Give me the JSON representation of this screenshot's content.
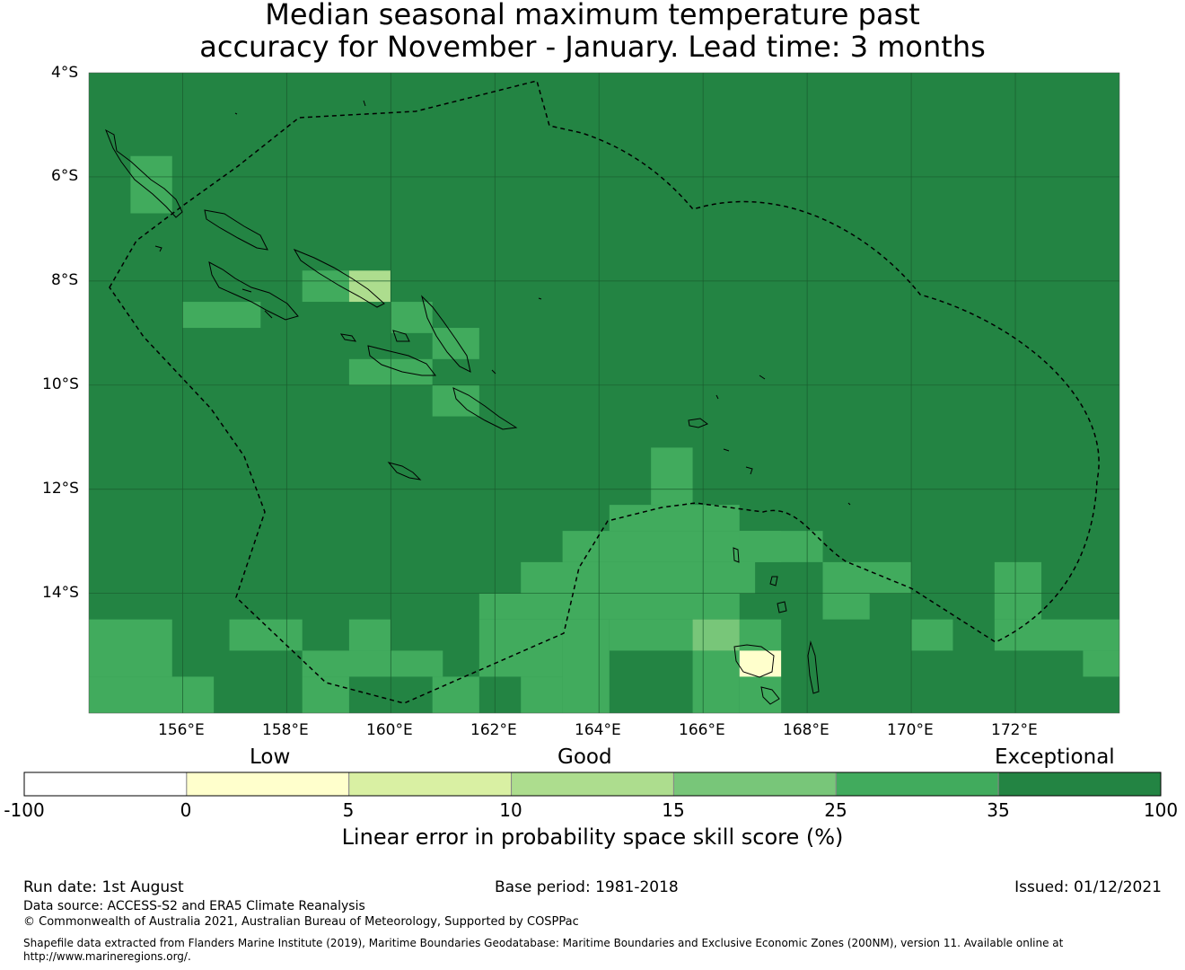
{
  "title": {
    "line1": "Median seasonal maximum temperature past",
    "line2": "accuracy for November - January. Lead time: 3 months"
  },
  "map": {
    "lon_range": [
      154.2,
      174.0
    ],
    "lat_range": [
      -4,
      -16.3
    ],
    "grid_x_labels": [
      "156°E",
      "158°E",
      "160°E",
      "162°E",
      "164°E",
      "166°E",
      "168°E",
      "170°E",
      "172°E"
    ],
    "grid_y_labels": [
      "4°S",
      "6°S",
      "8°S",
      "10°S",
      "12°S",
      "14°S"
    ],
    "background_category": "35-100",
    "anomaly_cells": [
      {
        "lon": [
          155.0,
          155.8
        ],
        "lat": [
          -5.6,
          -6.7
        ],
        "range": "25-35"
      },
      {
        "lon": [
          158.3,
          159.2
        ],
        "lat": [
          -7.8,
          -8.4
        ],
        "range": "25-35"
      },
      {
        "lon": [
          159.2,
          160.0
        ],
        "lat": [
          -7.8,
          -8.4
        ],
        "range": "10-15"
      },
      {
        "lon": [
          156.0,
          157.5
        ],
        "lat": [
          -8.4,
          -8.9
        ],
        "range": "25-35"
      },
      {
        "lon": [
          160.0,
          160.8
        ],
        "lat": [
          -8.4,
          -9.0
        ],
        "range": "25-35"
      },
      {
        "lon": [
          160.8,
          161.7
        ],
        "lat": [
          -8.9,
          -9.5
        ],
        "range": "25-35"
      },
      {
        "lon": [
          159.2,
          160.8
        ],
        "lat": [
          -9.5,
          -10.0
        ],
        "range": "25-35"
      },
      {
        "lon": [
          160.8,
          161.7
        ],
        "lat": [
          -10.0,
          -10.6
        ],
        "range": "25-35"
      },
      {
        "lon": [
          165.0,
          165.8
        ],
        "lat": [
          -11.2,
          -12.3
        ],
        "range": "25-35"
      },
      {
        "lon": [
          164.2,
          166.7
        ],
        "lat": [
          -12.3,
          -12.8
        ],
        "range": "25-35"
      },
      {
        "lon": [
          163.3,
          167.5
        ],
        "lat": [
          -12.8,
          -13.4
        ],
        "range": "25-35"
      },
      {
        "lon": [
          166.7,
          168.3
        ],
        "lat": [
          -12.8,
          -13.4
        ],
        "range": "25-35"
      },
      {
        "lon": [
          162.5,
          167.0
        ],
        "lat": [
          -13.4,
          -14.0
        ],
        "range": "25-35"
      },
      {
        "lon": [
          168.3,
          170.0
        ],
        "lat": [
          -13.4,
          -14.0
        ],
        "range": "25-35"
      },
      {
        "lon": [
          171.6,
          172.5
        ],
        "lat": [
          -13.4,
          -14.5
        ],
        "range": "25-35"
      },
      {
        "lon": [
          161.7,
          166.7
        ],
        "lat": [
          -14.0,
          -14.5
        ],
        "range": "25-35"
      },
      {
        "lon": [
          168.3,
          169.2
        ],
        "lat": [
          -14.0,
          -14.5
        ],
        "range": "25-35"
      },
      {
        "lon": [
          154.2,
          155.8
        ],
        "lat": [
          -14.5,
          -15.6
        ],
        "range": "25-35"
      },
      {
        "lon": [
          154.2,
          156.6
        ],
        "lat": [
          -15.6,
          -16.3
        ],
        "range": "25-35"
      },
      {
        "lon": [
          156.9,
          158.3
        ],
        "lat": [
          -14.5,
          -15.1
        ],
        "range": "25-35"
      },
      {
        "lon": [
          159.2,
          160.0
        ],
        "lat": [
          -14.5,
          -15.1
        ],
        "range": "25-35"
      },
      {
        "lon": [
          158.3,
          161.0
        ],
        "lat": [
          -15.1,
          -15.6
        ],
        "range": "25-35"
      },
      {
        "lon": [
          158.3,
          159.2
        ],
        "lat": [
          -15.6,
          -16.3
        ],
        "range": "25-35"
      },
      {
        "lon": [
          160.8,
          161.7
        ],
        "lat": [
          -15.6,
          -16.3
        ],
        "range": "25-35"
      },
      {
        "lon": [
          161.7,
          163.3
        ],
        "lat": [
          -14.5,
          -15.6
        ],
        "range": "25-35"
      },
      {
        "lon": [
          163.3,
          164.2
        ],
        "lat": [
          -14.5,
          -16.3
        ],
        "range": "25-35"
      },
      {
        "lon": [
          164.2,
          165.8
        ],
        "lat": [
          -14.5,
          -15.1
        ],
        "range": "25-35"
      },
      {
        "lon": [
          165.8,
          166.7
        ],
        "lat": [
          -15.1,
          -16.3
        ],
        "range": "25-35"
      },
      {
        "lon": [
          162.5,
          163.3
        ],
        "lat": [
          -15.6,
          -16.3
        ],
        "range": "25-35"
      },
      {
        "lon": [
          166.7,
          167.5
        ],
        "lat": [
          -14.5,
          -15.1
        ],
        "range": "25-35"
      },
      {
        "lon": [
          166.7,
          167.5
        ],
        "lat": [
          -15.6,
          -16.3
        ],
        "range": "25-35"
      },
      {
        "lon": [
          165.8,
          166.7
        ],
        "lat": [
          -14.5,
          -15.1
        ],
        "range": "15-25"
      },
      {
        "lon": [
          166.7,
          167.5
        ],
        "lat": [
          -15.1,
          -15.6
        ],
        "range": "0-5"
      },
      {
        "lon": [
          170.0,
          170.8
        ],
        "lat": [
          -14.5,
          -15.1
        ],
        "range": "25-35"
      },
      {
        "lon": [
          171.6,
          174.0
        ],
        "lat": [
          -14.5,
          -15.1
        ],
        "range": "25-35"
      },
      {
        "lon": [
          173.3,
          174.0
        ],
        "lat": [
          -15.1,
          -15.6
        ],
        "range": "25-35"
      }
    ]
  },
  "colorbar": {
    "category_labels": [
      "Low",
      "Good",
      "Exceptional"
    ],
    "ticks": [
      "-100",
      "0",
      "5",
      "10",
      "15",
      "25",
      "35",
      "100"
    ],
    "segments": [
      {
        "range": "-100-0",
        "color": "#ffffff"
      },
      {
        "range": "0-5",
        "color": "#ffffcc"
      },
      {
        "range": "5-10",
        "color": "#d9f0a3"
      },
      {
        "range": "10-15",
        "color": "#addd8e"
      },
      {
        "range": "15-25",
        "color": "#78c679"
      },
      {
        "range": "25-35",
        "color": "#41ab5d"
      },
      {
        "range": "35-100",
        "color": "#238443"
      }
    ],
    "title": "Linear error in probability space skill score (%)"
  },
  "footer": {
    "run_date": "Run date: 1st August",
    "base_period": "Base period: 1981-2018",
    "issued": "Issued: 01/12/2021",
    "data_source": "Data source: ACCESS-S2 and ERA5 Climate Reanalysis",
    "copyright": "© Commonwealth of Australia 2021, Australian Bureau of Meteorology, Supported by COSPPac",
    "shapefile_line1": "Shapefile data extracted from Flanders Marine Institute (2019), Maritime Boundaries Geodatabase: Maritime Boundaries and Exclusive Economic Zones (200NM), version 11. Available online at",
    "shapefile_line2": "http://www.marineregions.org/."
  }
}
